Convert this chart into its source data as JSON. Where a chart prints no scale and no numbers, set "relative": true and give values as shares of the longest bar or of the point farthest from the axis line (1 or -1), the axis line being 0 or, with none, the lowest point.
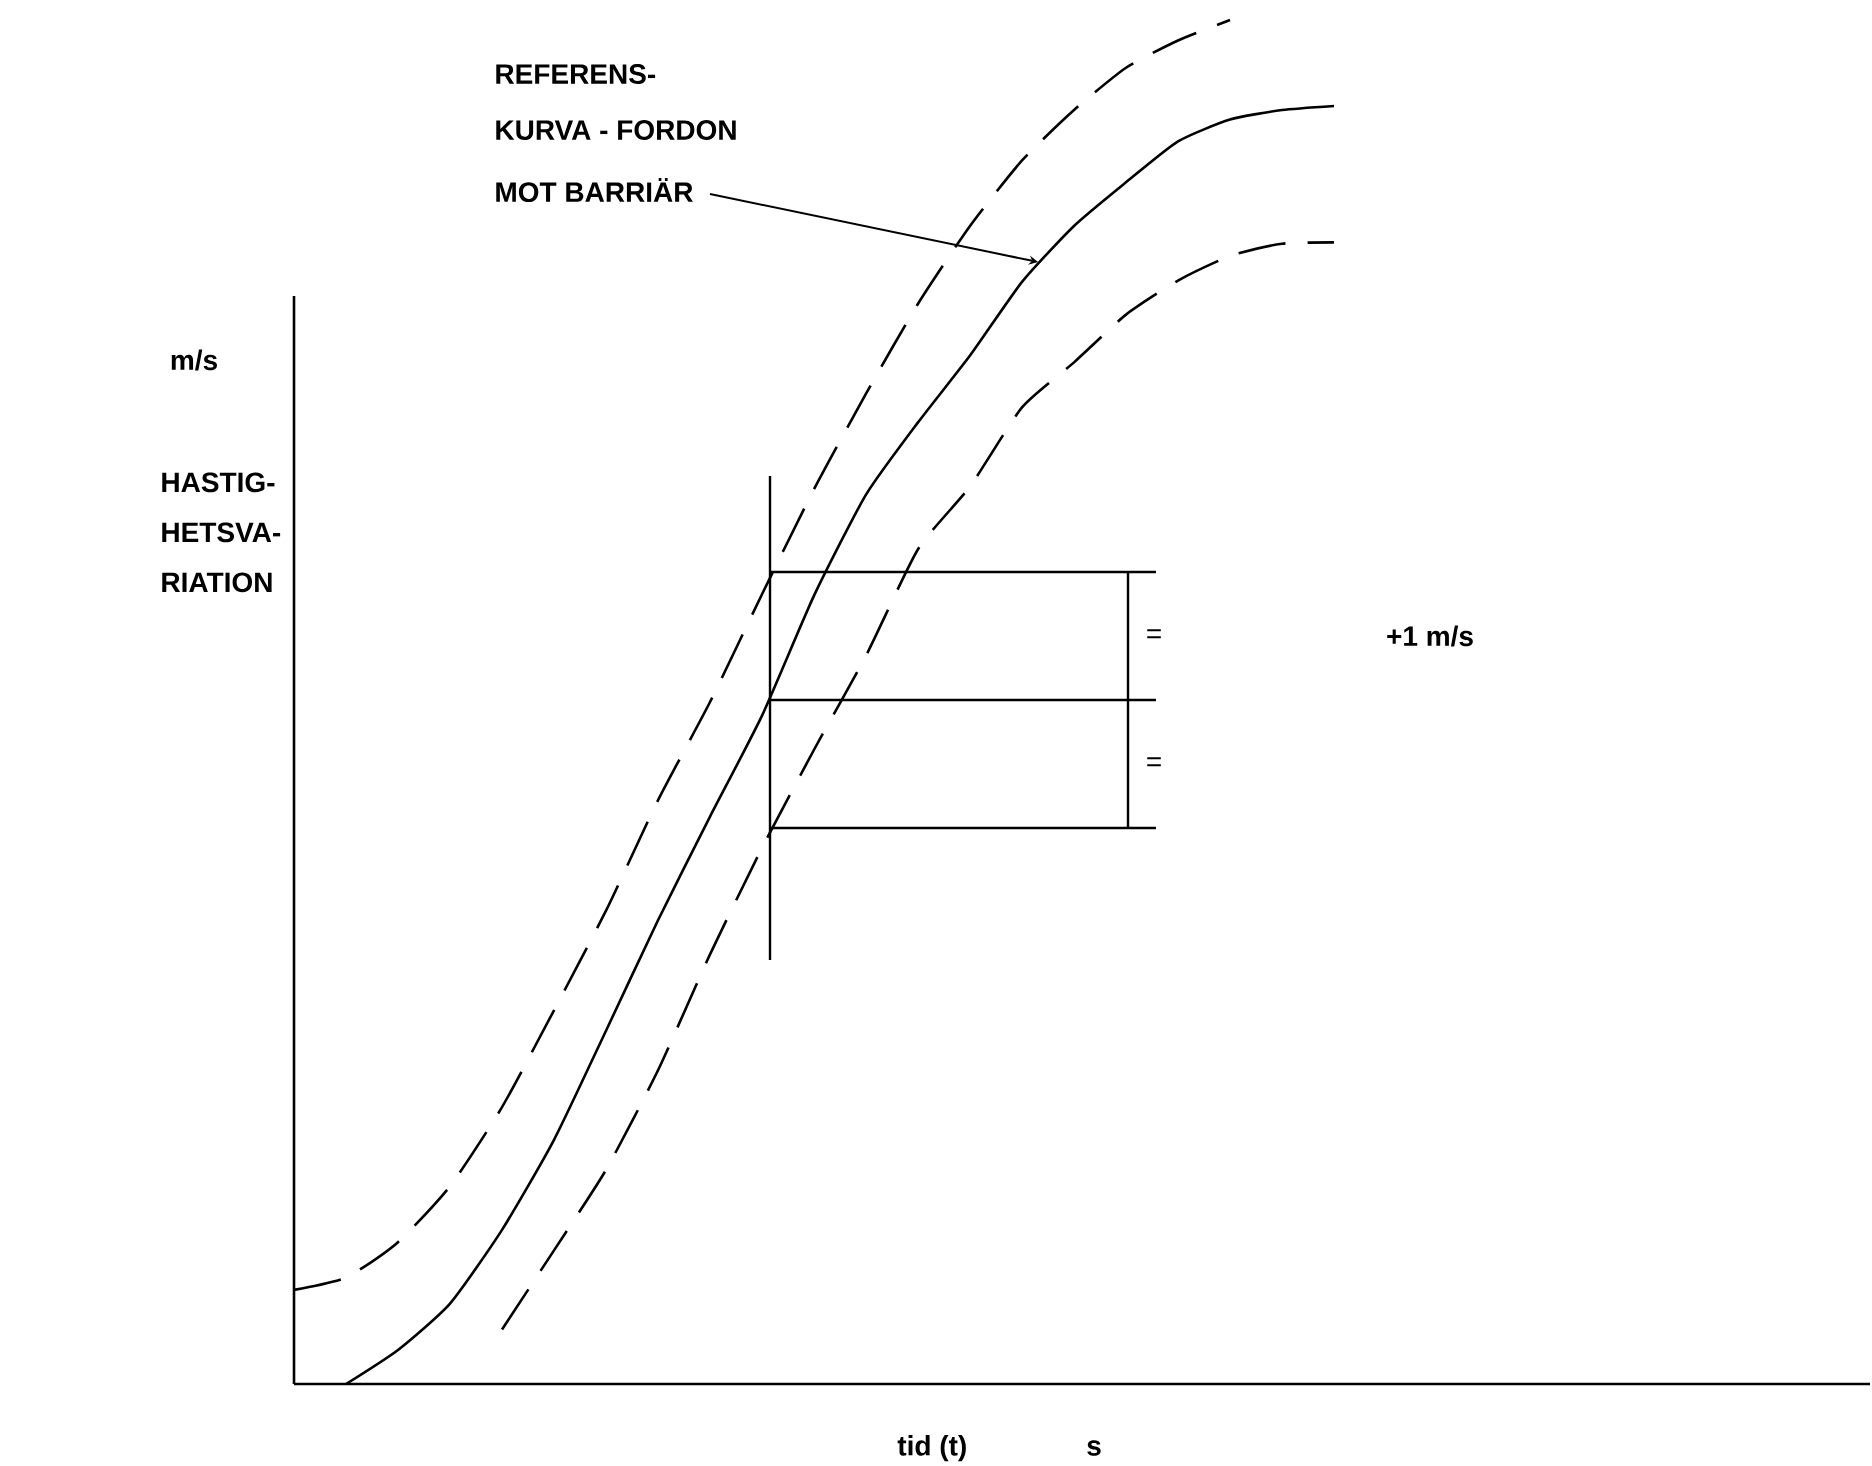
{
  "chart_data": {
    "type": "line",
    "relative": true,
    "xlabel": "tid (t)",
    "ylabel": "HASTIG-HETSVA-RIATION",
    "categories": [
      null,
      null,
      null,
      null,
      null,
      null,
      null,
      null,
      null,
      null,
      null,
      null,
      null,
      null,
      null,
      null,
      null,
      null,
      null,
      null,
      null
    ],
    "series": [
      {
        "color": "#000000",
        "line_style": "dashed",
        "values": [
          0.069,
          0.078,
          0.104,
          0.145,
          0.203,
          0.274,
          0.347,
          0.428,
          0.5,
          0.579,
          0.656,
          0.726,
          0.792,
          0.849,
          0.897,
          0.934,
          0.965,
          0.985,
          1,
          null,
          null
        ]
      },
      {
        "color": "#000000",
        "line_style": "solid",
        "values": [
          null,
          0,
          0.025,
          0.059,
          0.113,
          0.179,
          0.259,
          0.34,
          0.416,
          0.49,
          0.578,
          0.652,
          0.705,
          0.754,
          0.808,
          0.849,
          0.881,
          0.911,
          0.927,
          0.934,
          0.937
        ]
      },
      {
        "color": "#000000",
        "line_style": "dashed",
        "values": [
          null,
          null,
          null,
          null,
          0.04,
          0.098,
          0.157,
          0.23,
          0.315,
          0.393,
          0.465,
          0.534,
          0.612,
          0.658,
          0.716,
          0.749,
          0.784,
          0.809,
          0.827,
          0.836,
          0.837
        ]
      }
    ],
    "annotations": [
      "REFERENS-",
      "KURVA - FORDON",
      "MOT BARRIÄR",
      "m/s",
      "+1 m/s",
      "=",
      "=",
      "s"
    ]
  }
}
